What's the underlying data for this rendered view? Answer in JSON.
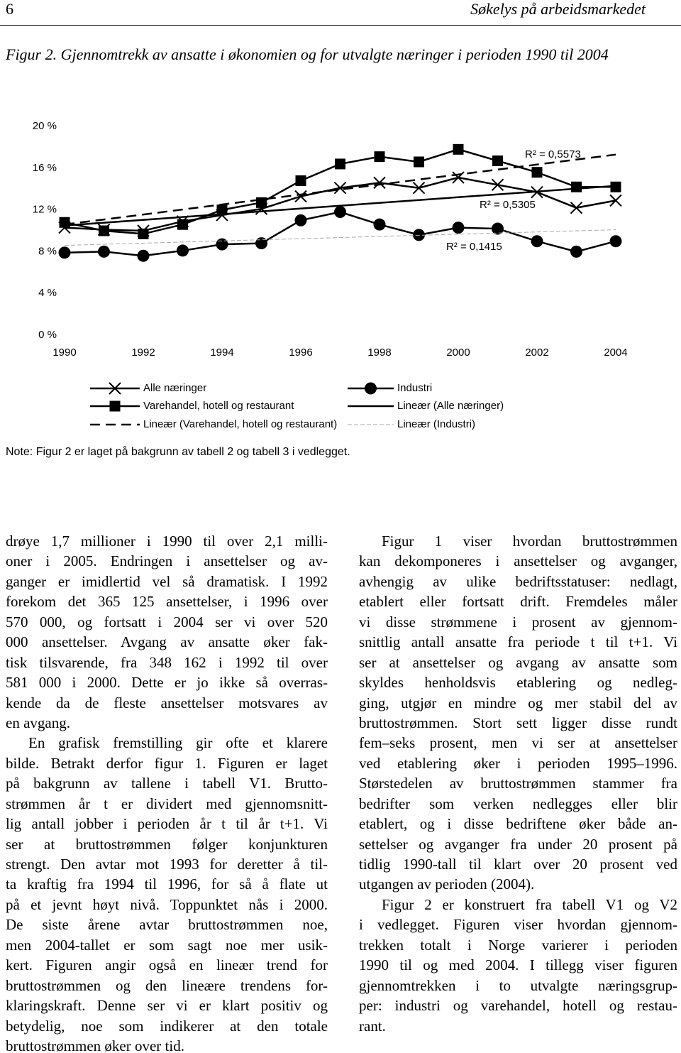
{
  "header": {
    "page_number": "6",
    "running_title": "Søkelys på arbeidsmarkedet"
  },
  "figure_caption": "Figur 2. Gjennomtrekk av ansatte i økonomien og for utvalgte næringer i perioden 1990 til 2004",
  "chart_data": {
    "type": "line",
    "x": [
      1990,
      1991,
      1992,
      1993,
      1994,
      1995,
      1996,
      1997,
      1998,
      1999,
      2000,
      2001,
      2002,
      2003,
      2004
    ],
    "xlim": [
      1990,
      2004
    ],
    "xticks": [
      1990,
      1992,
      1994,
      1996,
      1998,
      2000,
      2002,
      2004
    ],
    "ylim": [
      0,
      20
    ],
    "yticks": [
      {
        "value": 0,
        "label": "0 %"
      },
      {
        "value": 4,
        "label": "4 %"
      },
      {
        "value": 8,
        "label": "8 %"
      },
      {
        "value": 12,
        "label": "12 %"
      },
      {
        "value": 16,
        "label": "16 %"
      },
      {
        "value": 20,
        "label": "20 %"
      }
    ],
    "grid": false,
    "series": [
      {
        "name": "Alle næringer",
        "color": "#000000",
        "marker": "x",
        "line": "solid",
        "values": [
          10.3,
          10.1,
          10.0,
          10.9,
          11.5,
          12.1,
          13.3,
          14.1,
          14.6,
          14.1,
          15.1,
          14.4,
          13.7,
          12.2,
          12.9
        ]
      },
      {
        "name": "Industri",
        "color": "#000000",
        "marker": "circle",
        "line": "solid",
        "values": [
          7.9,
          8.0,
          7.6,
          8.1,
          8.7,
          8.8,
          11.0,
          11.8,
          10.6,
          9.6,
          10.3,
          10.2,
          9.0,
          8.0,
          9.0
        ]
      },
      {
        "name": "Varehandel, hotell og restaurant",
        "color": "#000000",
        "marker": "square",
        "line": "solid",
        "values": [
          10.8,
          10.0,
          9.7,
          10.6,
          12.0,
          12.7,
          14.8,
          16.4,
          17.1,
          16.6,
          17.8,
          16.7,
          15.6,
          14.2,
          14.2
        ]
      },
      {
        "name": "Lineær (Alle næringer)",
        "color": "#000000",
        "marker": "none",
        "line": "solid",
        "x": [
          1990,
          2004
        ],
        "values": [
          10.5,
          14.3
        ]
      },
      {
        "name": "Lineær (Varehandel, hotell og restaurant)",
        "color": "#000000",
        "marker": "none",
        "line": "dashed",
        "x": [
          1990,
          2004
        ],
        "values": [
          10.6,
          17.3
        ]
      },
      {
        "name": "Lineær (Industri)",
        "color": "#aaaaaa",
        "marker": "none",
        "line": "dashed",
        "x": [
          1990,
          2004
        ],
        "values": [
          8.6,
          10.1
        ]
      }
    ],
    "annotations": [
      "R² = 0,5573",
      "R² = 0,5305",
      "R² = 0,1415"
    ]
  },
  "note": "Note: Figur 2 er laget på bakgrunn av tabell 2 og tabell 3 i vedlegget.",
  "body": {
    "columns": [
      [
        [
          "drøye 1,7 millioner i 1990 til over 2,1 milli-",
          "oner i 2005. Endringen i ansettelser og av-",
          "ganger er imidlertid vel så dramatisk. I 1992",
          "forekom det 365 125 ansettelser, i 1996 over",
          "570 000, og fortsatt i 2004 ser vi over 520",
          "000 ansettelser. Avgang av ansatte øker fak-",
          "tisk tilsvarende, fra 348 162 i 1992 til over",
          "581 000 i 2000. Dette er jo ikke så overras-",
          "kende da de fleste ansettelser motsvares av",
          "en avgang."
        ],
        [
          "En grafisk fremstilling gir ofte et klarere",
          "bilde. Betrakt derfor figur 1. Figuren er laget",
          "på bakgrunn av tallene i tabell V1. Brutto-",
          "strømmen år t er dividert med gjennomsnitt-",
          "lig antall jobber i perioden år t til år t+1. Vi",
          "ser at bruttostrømmen følger konjunkturen",
          "strengt. Den avtar mot 1993 for deretter å til-",
          "ta kraftig fra 1994 til 1996, for så å flate ut",
          "på et jevnt høyt nivå. Toppunktet nås i 2000.",
          "De siste årene avtar bruttostrømmen noe,",
          "men 2004-tallet er som sagt noe mer usik-",
          "kert. Figuren angir også en lineær trend for",
          "bruttostrømmen og den lineære trendens for-",
          "klaringskraft. Denne ser vi er klart positiv og",
          "betydelig, noe som indikerer at den totale",
          "bruttostrømmen øker over tid."
        ]
      ],
      [
        [
          "Figur 1 viser hvordan bruttostrømmen",
          "kan dekomponeres i ansettelser og avganger,",
          "avhengig av ulike bedriftsstatuser: nedlagt,",
          "etablert eller fortsatt drift. Fremdeles måler",
          "vi disse strømmene i prosent av gjennom-",
          "snittlig antall ansatte fra periode t til t+1. Vi",
          "ser at ansettelser og avgang av ansatte som",
          "skyldes henholdsvis etablering og nedleg-",
          "ging, utgjør en mindre og mer stabil del av",
          "bruttostrømmen. Stort sett ligger disse rundt",
          "fem–seks prosent, men vi ser at ansettelser",
          "ved etablering øker i perioden 1995–1996.",
          "Størstedelen av bruttostrømmen stammer fra",
          "bedrifter som verken nedlegges eller blir",
          "etablert, og i disse bedriftene øker både an-",
          "settelser og avganger fra under 20 prosent på",
          "tidlig 1990-tall til klart over 20 prosent ved",
          "utgangen av perioden (2004)."
        ],
        [
          "Figur 2 er konstruert fra tabell V1 og V2",
          "i vedlegget. Figuren viser hvordan gjennom-",
          "trekken totalt i Norge varierer i perioden",
          "1990 til og med 2004. I tillegg viser figuren",
          "gjennomtrekken i to utvalgte næringsgrup-",
          "per: industri og varehandel, hotell og restau-",
          "rant."
        ]
      ]
    ]
  }
}
